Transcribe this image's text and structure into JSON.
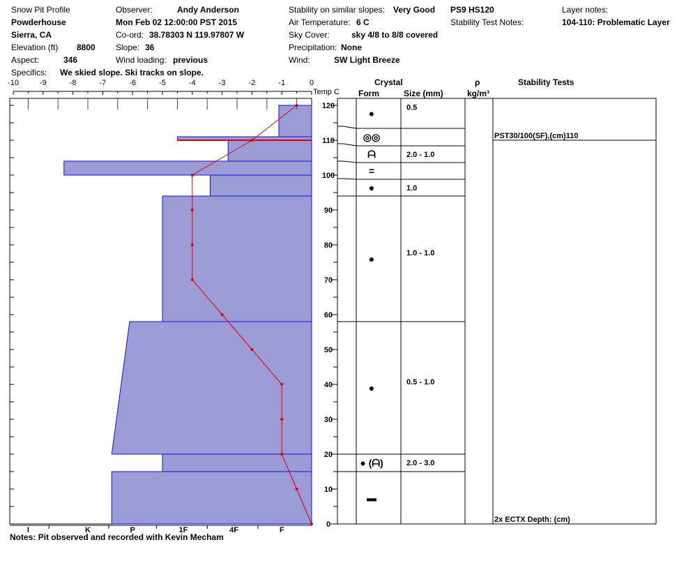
{
  "header": {
    "col1": [
      {
        "label": "Snow Pit Profile",
        "value": ""
      },
      {
        "label": "",
        "value": "Powderhouse"
      },
      {
        "label": "",
        "value": "Sierra, CA"
      },
      {
        "label": "Elevation (ft)",
        "value": "8800"
      },
      {
        "label": "Aspect:",
        "value": "346"
      },
      {
        "label": "Specifics:",
        "value": "We skied slope. Ski tracks on slope."
      }
    ],
    "col2": [
      {
        "label": "Observer:",
        "value": "Andy Anderson"
      },
      {
        "label": "",
        "value": "Mon Feb 02 12:00:00 PST 2015"
      },
      {
        "label": "Co-ord:",
        "value": "38.78303 N 119.97807 W"
      },
      {
        "label": "Slope:",
        "value": "36"
      },
      {
        "label": "Wind loading:",
        "value": "previous"
      }
    ],
    "col3": [
      {
        "label": "Stability on similar slopes:",
        "value": "Very Good"
      },
      {
        "label": "Air Temperature:",
        "value": "6 C"
      },
      {
        "label": "Sky Cover:",
        "value": "sky 4/8 to 8/8 covered"
      },
      {
        "label": "Precipitation:",
        "value": "None"
      },
      {
        "label": "Wind:",
        "value": "SW Light Breeze"
      }
    ],
    "col4": [
      {
        "label": "",
        "value": "PS9 HS120"
      },
      {
        "label": "Stability Test Notes:",
        "value": ""
      }
    ],
    "col5": [
      {
        "label": "Layer notes:",
        "value": ""
      },
      {
        "label": "",
        "value": "104-110: Problematic Layer"
      }
    ]
  },
  "columns": {
    "temp": "Temp C",
    "crystal": "Crystal",
    "form": "Form",
    "size": "Size (mm)",
    "rho": "ρ",
    "rho_unit": "kg/m³",
    "stability": "Stability Tests"
  },
  "notes": {
    "label": "Notes:",
    "value": "Pit observed and recorded with Kevin Mecham"
  },
  "stability_tests": [
    {
      "text": "PST30/100(SF),(cm)110",
      "depth": 110
    },
    {
      "text": "2x ECTX   Depth: (cm)",
      "depth": 0
    }
  ],
  "chart_data": {
    "type": "snow-profile",
    "temperature": {
      "axis_ticks": [
        "-10",
        "-9",
        "-8",
        "-7",
        "-6",
        "-5",
        "-4",
        "-3",
        "-2",
        "-1",
        "0"
      ],
      "xlim": [
        -10,
        0
      ],
      "points": [
        {
          "height": 120,
          "temp": -0.5
        },
        {
          "height": 110,
          "temp": -2
        },
        {
          "height": 100,
          "temp": -4
        },
        {
          "height": 90,
          "temp": -4
        },
        {
          "height": 80,
          "temp": -4
        },
        {
          "height": 70,
          "temp": -4
        },
        {
          "height": 60,
          "temp": -3
        },
        {
          "height": 50,
          "temp": -2
        },
        {
          "height": 40,
          "temp": -1
        },
        {
          "height": 30,
          "temp": -1
        },
        {
          "height": 20,
          "temp": -1
        },
        {
          "height": 10,
          "temp": -0.5
        },
        {
          "height": 0,
          "temp": 0
        }
      ]
    },
    "height_axis": {
      "ylim": [
        0,
        122
      ],
      "ticks": [
        "0",
        "10",
        "20",
        "30",
        "40",
        "50",
        "60",
        "70",
        "80",
        "90",
        "100",
        "110",
        "120"
      ]
    },
    "hardness_axis": [
      "I",
      "K",
      "P",
      "1F",
      "4F",
      "F"
    ],
    "hardness_profile": [
      {
        "bottom": 0,
        "top": 15,
        "hardness_bottom": -6.7,
        "hardness_top": -6.7
      },
      {
        "bottom": 15,
        "top": 20,
        "hardness_bottom": -5,
        "hardness_top": -5
      },
      {
        "bottom": 20,
        "top": 58,
        "hardness_bottom": -6.7,
        "hardness_top": -6.1
      },
      {
        "bottom": 58,
        "top": 94,
        "hardness_bottom": -5,
        "hardness_top": -5
      },
      {
        "bottom": 94,
        "top": 100,
        "hardness_bottom": -3.4,
        "hardness_top": -3.4
      },
      {
        "bottom": 100,
        "top": 104,
        "hardness_bottom": -8.3,
        "hardness_top": -8.3
      },
      {
        "bottom": 104,
        "top": 110,
        "hardness_bottom": -2.8,
        "hardness_top": -2.8
      },
      {
        "bottom": 110,
        "top": 111,
        "hardness_bottom": -4.5,
        "hardness_top": -4.5
      },
      {
        "bottom": 111,
        "top": 120,
        "hardness_bottom": -1.1,
        "hardness_top": -1.1
      }
    ],
    "problem_layer_height": 110,
    "layers": [
      {
        "bottom": 0,
        "top": 15,
        "form_icon": "melt-forms-icon",
        "form": "▬",
        "size": ""
      },
      {
        "bottom": 15,
        "top": 20,
        "form_icon": "rounded-faceted-icon",
        "form": "● (ᗩ)",
        "size": "2.0 - 3.0"
      },
      {
        "bottom": 20,
        "top": 58,
        "form_icon": "rounded-grains-icon",
        "form": "●",
        "size": "0.5 - 1.0"
      },
      {
        "bottom": 58,
        "top": 94,
        "form_icon": "rounded-grains-icon",
        "form": "●",
        "size": "1.0 - 1.0"
      },
      {
        "bottom": 94,
        "top": 99,
        "form_icon": "rounded-grains-icon",
        "form": "●",
        "size": "1.0"
      },
      {
        "bottom": 99,
        "top": 104,
        "form_icon": "ice-crust-icon",
        "form": "=",
        "size": ""
      },
      {
        "bottom": 104,
        "top": 109,
        "form_icon": "depth-hoar-icon",
        "form": "ᗩ",
        "size": "2.0 - 1.0"
      },
      {
        "bottom": 109,
        "top": 114,
        "form_icon": "surface-hoar-icon",
        "form": "◎◎",
        "size": ""
      },
      {
        "bottom": 114,
        "top": 120,
        "form_icon": "rounded-grains-icon",
        "form": "●",
        "size": "0.5"
      }
    ],
    "colors": {
      "hardness_fill": "#9b9bd6",
      "hardness_edge": "#1010e0",
      "temperature": "#e00000"
    }
  }
}
